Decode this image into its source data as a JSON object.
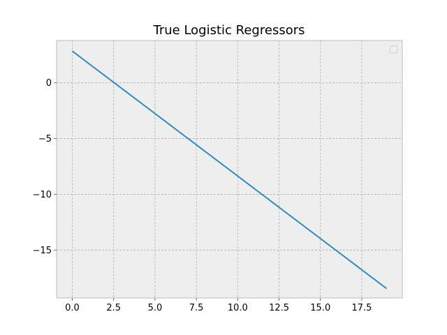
{
  "chart_data": {
    "type": "line",
    "title": "True Logistic Regressors",
    "xlabel": "",
    "ylabel": "",
    "xlim": [
      -0.95,
      19.95
    ],
    "ylim": [
      -19.3,
      3.8
    ],
    "xticks": [
      0.0,
      2.5,
      5.0,
      7.5,
      10.0,
      12.5,
      15.0,
      17.5
    ],
    "xtick_labels": [
      "0.0",
      "2.5",
      "5.0",
      "7.5",
      "10.0",
      "12.5",
      "15.0",
      "17.5"
    ],
    "yticks": [
      0,
      -5,
      -10,
      -15
    ],
    "ytick_labels": [
      "0",
      "−5",
      "−10",
      "−15"
    ],
    "grid": true,
    "legend": {
      "placement": "top-right",
      "entries": []
    },
    "series": [
      {
        "x": [
          0,
          19
        ],
        "y": [
          2.85,
          -18.45
        ]
      }
    ],
    "colors": {
      "line": "#348abd",
      "axes_background": "#eeeeee",
      "grid": "#b0b0b0",
      "frame": "#bcbcbc"
    }
  }
}
